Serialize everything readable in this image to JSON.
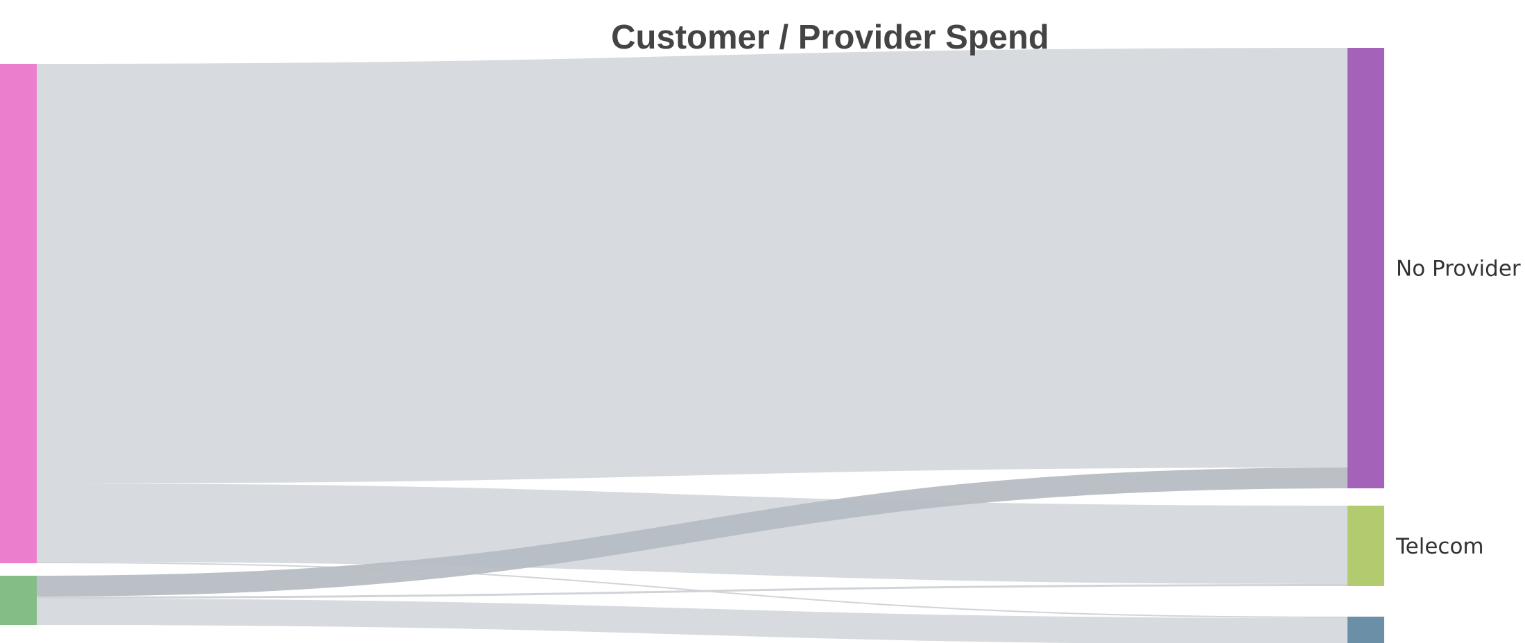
{
  "chart_data": {
    "type": "sankey",
    "title": "Customer / Provider Spend",
    "sources": [
      {
        "id": "src-1",
        "label": "",
        "color": "#eb7fce"
      },
      {
        "id": "src-2",
        "label": "",
        "color": "#85bd86"
      }
    ],
    "targets": [
      {
        "id": "no-provider",
        "label": "No Provider",
        "color": "#a463b8"
      },
      {
        "id": "telecom",
        "label": "Telecom",
        "color": "#b3cb6f"
      },
      {
        "id": "target-3",
        "label": "",
        "color": "#6c8fa8"
      }
    ],
    "links": [
      {
        "source": "src-1",
        "target": "no-provider",
        "value": 605,
        "color": "#d5d9dd"
      },
      {
        "source": "src-1",
        "target": "telecom",
        "value": 113,
        "color": "#d5d9dd"
      },
      {
        "source": "src-1",
        "target": "target-3",
        "value": 2,
        "color": "#cdd2d7"
      },
      {
        "source": "src-2",
        "target": "no-provider",
        "value": 30,
        "color": "#b6bdc3"
      },
      {
        "source": "src-2",
        "target": "telecom",
        "value": 3,
        "color": "#cdd2d7"
      },
      {
        "source": "src-2",
        "target": "target-3",
        "value": 38,
        "color": "#d5d9dd"
      }
    ]
  }
}
